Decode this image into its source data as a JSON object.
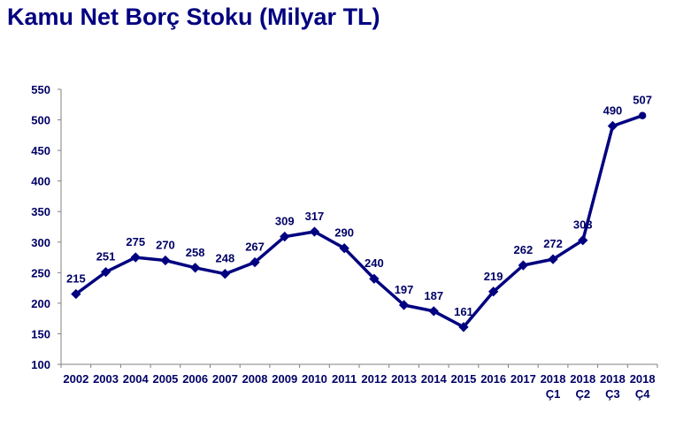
{
  "title": "Kamu Net Borç Stoku (Milyar TL)",
  "colors": {
    "series": "#000080",
    "text": "#000066",
    "axis": "#808080"
  },
  "chart_data": {
    "type": "line",
    "title": "Kamu Net Borç Stoku (Milyar TL)",
    "xlabel": "",
    "ylabel": "",
    "ylim": [
      100,
      550
    ],
    "yticks": [
      100,
      150,
      200,
      250,
      300,
      350,
      400,
      450,
      500,
      550
    ],
    "grid": false,
    "legend": null,
    "categories": [
      [
        "2002"
      ],
      [
        "2003"
      ],
      [
        "2004"
      ],
      [
        "2005"
      ],
      [
        "2006"
      ],
      [
        "2007"
      ],
      [
        "2008"
      ],
      [
        "2009"
      ],
      [
        "2010"
      ],
      [
        "2011"
      ],
      [
        "2012"
      ],
      [
        "2013"
      ],
      [
        "2014"
      ],
      [
        "2015"
      ],
      [
        "2016"
      ],
      [
        "2017"
      ],
      [
        "2018",
        "Ç1"
      ],
      [
        "2018",
        "Ç2"
      ],
      [
        "2018",
        "Ç3"
      ],
      [
        "2018",
        "Ç4"
      ]
    ],
    "series": [
      {
        "name": "Kamu Net Borç Stoku",
        "values": [
          215,
          251,
          275,
          270,
          258,
          248,
          267,
          309,
          317,
          290,
          240,
          197,
          187,
          161,
          219,
          262,
          272,
          303,
          490,
          507
        ],
        "data_labels": true
      }
    ]
  }
}
